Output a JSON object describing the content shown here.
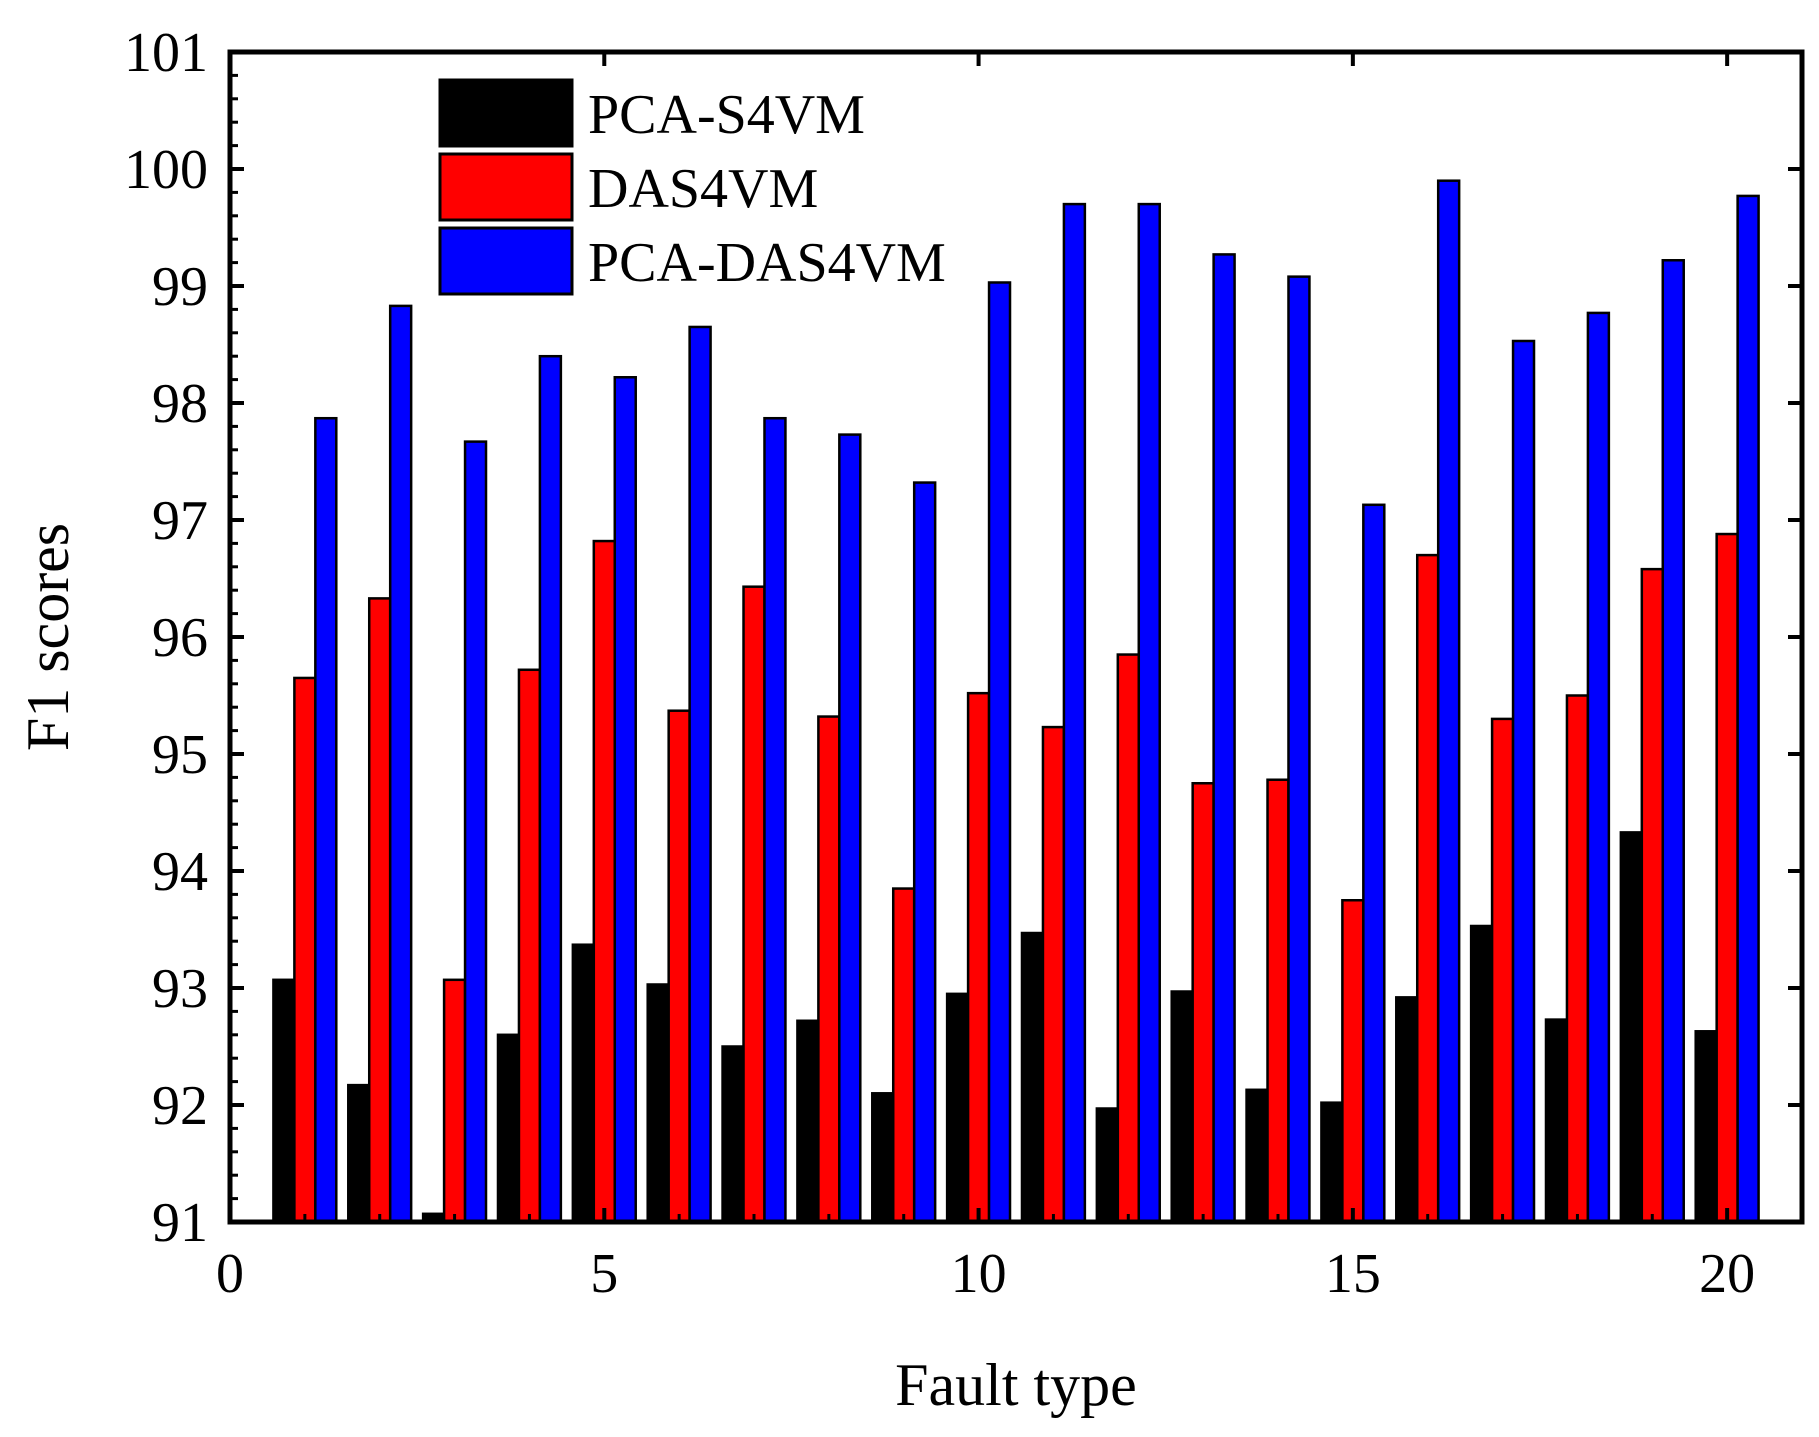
{
  "chart_data": {
    "type": "bar",
    "title": "",
    "xlabel": "Fault type",
    "ylabel": "F1 scores",
    "xlim": [
      0,
      21
    ],
    "ylim": [
      91,
      101
    ],
    "x_ticks": [
      0,
      5,
      10,
      15,
      20
    ],
    "y_ticks": [
      91,
      92,
      93,
      94,
      95,
      96,
      97,
      98,
      99,
      100,
      101
    ],
    "legend_position": "top-left",
    "grid": false,
    "categories": [
      1,
      2,
      3,
      4,
      5,
      6,
      7,
      8,
      9,
      10,
      11,
      12,
      13,
      14,
      15,
      16,
      17,
      18,
      19,
      20
    ],
    "series": [
      {
        "name": "PCA-S4VM",
        "color": "#000000",
        "values": [
          93.07,
          92.17,
          91.07,
          92.6,
          93.37,
          93.03,
          92.5,
          92.72,
          92.1,
          92.95,
          93.47,
          91.97,
          92.97,
          92.13,
          92.02,
          92.92,
          93.53,
          92.73,
          94.33,
          92.63
        ]
      },
      {
        "name": "DAS4VM",
        "color": "#ff0000",
        "values": [
          95.65,
          96.33,
          93.07,
          95.72,
          96.82,
          95.37,
          96.43,
          95.32,
          93.85,
          95.52,
          95.23,
          95.85,
          94.75,
          94.78,
          93.75,
          96.7,
          95.3,
          95.5,
          96.58,
          96.88
        ]
      },
      {
        "name": "PCA-DAS4VM",
        "color": "#0000ff",
        "values": [
          97.87,
          98.83,
          97.67,
          98.4,
          98.22,
          98.65,
          97.87,
          97.73,
          97.32,
          99.03,
          99.7,
          99.7,
          99.27,
          99.08,
          97.13,
          99.9,
          98.53,
          98.77,
          99.22,
          99.77
        ]
      }
    ]
  }
}
